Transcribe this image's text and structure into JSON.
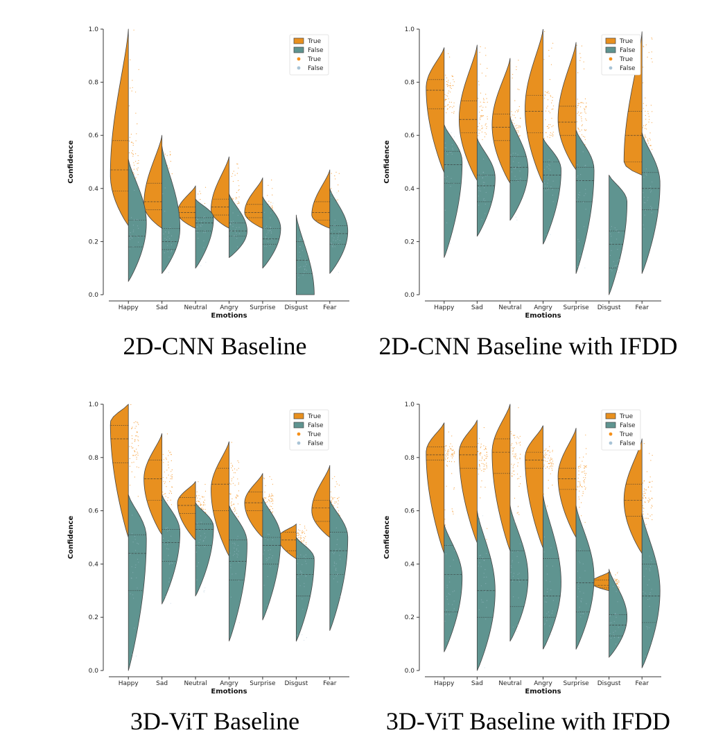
{
  "colors": {
    "true": "#e8901f",
    "false": "#5f9490",
    "true_point": "#f5901a",
    "false_point": "#a9c4d6",
    "edge": "#444444"
  },
  "legend_entries": [
    "True",
    "False",
    "True",
    "False"
  ],
  "chart_data": [
    {
      "type": "violin",
      "caption": "2D-CNN Baseline",
      "xlabel": "Emotions",
      "ylabel": "Confidence",
      "categories": [
        "Happy",
        "Sad",
        "Neutral",
        "Angry",
        "Surprise",
        "Disgust",
        "Fear"
      ],
      "ylim": [
        0,
        1
      ],
      "yticks": [
        "0.0",
        "0.2",
        "0.4",
        "0.6",
        "0.8",
        "1.0"
      ],
      "legend": "top-right",
      "series": [
        {
          "name": "True",
          "side": "left",
          "ranges": [
            [
              0.26,
              1.0
            ],
            [
              0.25,
              0.6
            ],
            [
              0.25,
              0.41
            ],
            [
              0.25,
              0.52
            ],
            [
              0.25,
              0.44
            ],
            null,
            [
              0.25,
              0.47
            ]
          ],
          "quartiles": [
            [
              0.39,
              0.47,
              0.58
            ],
            [
              0.32,
              0.35,
              0.42
            ],
            [
              0.29,
              0.31,
              0.33
            ],
            [
              0.3,
              0.33,
              0.36
            ],
            [
              0.29,
              0.31,
              0.34
            ],
            null,
            [
              0.28,
              0.31,
              0.35
            ]
          ],
          "peaks": [
            0.45,
            0.34,
            0.31,
            0.32,
            0.31,
            null,
            0.3
          ]
        },
        {
          "name": "False",
          "side": "right",
          "ranges": [
            [
              0.05,
              0.51
            ],
            [
              0.08,
              0.56
            ],
            [
              0.1,
              0.36
            ],
            [
              0.14,
              0.38
            ],
            [
              0.1,
              0.37
            ],
            [
              0.0,
              0.3
            ],
            [
              0.08,
              0.4
            ]
          ],
          "quartiles": [
            [
              0.18,
              0.22,
              0.28
            ],
            [
              0.17,
              0.2,
              0.25
            ],
            [
              0.24,
              0.27,
              0.29
            ],
            [
              0.22,
              0.24,
              0.27
            ],
            [
              0.19,
              0.21,
              0.25
            ],
            [
              0.08,
              0.13,
              0.2
            ],
            [
              0.19,
              0.23,
              0.26
            ]
          ],
          "peaks": [
            0.27,
            0.25,
            0.29,
            0.24,
            0.25,
            0.0,
            0.24
          ]
        }
      ]
    },
    {
      "type": "violin",
      "caption": "2D-CNN Baseline with IFDD",
      "xlabel": "Emotions",
      "ylabel": "Confidence",
      "categories": [
        "Happy",
        "Sad",
        "Neutral",
        "Angry",
        "Surprise",
        "Disgust",
        "Fear"
      ],
      "ylim": [
        0,
        1
      ],
      "yticks": [
        "0.0",
        "0.2",
        "0.4",
        "0.6",
        "0.8",
        "1.0"
      ],
      "legend": "top-right",
      "series": [
        {
          "name": "True",
          "side": "left",
          "ranges": [
            [
              0.46,
              0.93
            ],
            [
              0.43,
              0.94
            ],
            [
              0.42,
              0.89
            ],
            [
              0.42,
              1.0
            ],
            [
              0.47,
              0.95
            ],
            null,
            [
              0.45,
              0.99
            ]
          ],
          "quartiles": [
            [
              0.7,
              0.77,
              0.81
            ],
            [
              0.61,
              0.66,
              0.73
            ],
            [
              0.58,
              0.63,
              0.68
            ],
            [
              0.61,
              0.69,
              0.75
            ],
            [
              0.6,
              0.65,
              0.71
            ],
            null,
            [
              0.5,
              0.6,
              0.69
            ]
          ],
          "peaks": [
            0.78,
            0.66,
            0.64,
            0.7,
            0.66,
            null,
            0.5
          ]
        },
        {
          "name": "False",
          "side": "right",
          "ranges": [
            [
              0.14,
              0.64
            ],
            [
              0.22,
              0.59
            ],
            [
              0.28,
              0.67
            ],
            [
              0.19,
              0.59
            ],
            [
              0.08,
              0.62
            ],
            [
              0.0,
              0.45
            ],
            [
              0.08,
              0.61
            ]
          ],
          "quartiles": [
            [
              0.42,
              0.49,
              0.54
            ],
            [
              0.35,
              0.41,
              0.45
            ],
            [
              0.43,
              0.48,
              0.52
            ],
            [
              0.4,
              0.45,
              0.5
            ],
            [
              0.35,
              0.43,
              0.48
            ],
            [
              0.1,
              0.19,
              0.24
            ],
            [
              0.32,
              0.4,
              0.46
            ]
          ],
          "peaks": [
            0.5,
            0.44,
            0.47,
            0.47,
            0.47,
            0.35,
            0.42
          ]
        }
      ]
    },
    {
      "type": "violin",
      "caption": "3D-ViT Baseline",
      "xlabel": "Emotions",
      "ylabel": "Confidence",
      "categories": [
        "Happy",
        "Sad",
        "Neutral",
        "Angry",
        "Surprise",
        "Disgust",
        "Fear"
      ],
      "ylim": [
        0,
        1
      ],
      "yticks": [
        "0.0",
        "0.2",
        "0.4",
        "0.6",
        "0.8",
        "1.0"
      ],
      "legend": "top-right",
      "series": [
        {
          "name": "True",
          "side": "left",
          "ranges": [
            [
              0.5,
              1.0
            ],
            [
              0.51,
              0.89
            ],
            [
              0.49,
              0.71
            ],
            [
              0.43,
              0.86
            ],
            [
              0.5,
              0.74
            ],
            [
              0.42,
              0.55
            ],
            [
              0.5,
              0.77
            ]
          ],
          "quartiles": [
            [
              0.78,
              0.87,
              0.92
            ],
            [
              0.64,
              0.72,
              0.79
            ],
            [
              0.59,
              0.62,
              0.65
            ],
            [
              0.6,
              0.7,
              0.76
            ],
            [
              0.6,
              0.63,
              0.67
            ],
            [
              0.45,
              0.49,
              0.52
            ],
            [
              0.56,
              0.61,
              0.64
            ]
          ],
          "peaks": [
            0.93,
            0.72,
            0.63,
            0.68,
            0.63,
            0.5,
            0.6
          ]
        },
        {
          "name": "False",
          "side": "right",
          "ranges": [
            [
              0.0,
              0.66
            ],
            [
              0.25,
              0.66
            ],
            [
              0.28,
              0.63
            ],
            [
              0.11,
              0.62
            ],
            [
              0.19,
              0.65
            ],
            [
              0.11,
              0.5
            ],
            [
              0.15,
              0.64
            ]
          ],
          "quartiles": [
            [
              0.3,
              0.44,
              0.51
            ],
            [
              0.41,
              0.48,
              0.53
            ],
            [
              0.47,
              0.53,
              0.55
            ],
            [
              0.34,
              0.41,
              0.49
            ],
            [
              0.4,
              0.47,
              0.5
            ],
            [
              0.28,
              0.36,
              0.42
            ],
            [
              0.36,
              0.45,
              0.52
            ]
          ],
          "peaks": [
            0.5,
            0.52,
            0.54,
            0.48,
            0.5,
            0.42,
            0.5
          ]
        }
      ]
    },
    {
      "type": "violin",
      "caption": "3D-ViT Baseline with IFDD",
      "xlabel": "Emotions",
      "ylabel": "Confidence",
      "categories": [
        "Happy",
        "Sad",
        "Neutral",
        "Angry",
        "Surprise",
        "Disgust",
        "Fear"
      ],
      "ylim": [
        0,
        1
      ],
      "yticks": [
        "0.0",
        "0.2",
        "0.4",
        "0.6",
        "0.8",
        "1.0"
      ],
      "legend": "top-right",
      "series": [
        {
          "name": "True",
          "side": "left",
          "ranges": [
            [
              0.44,
              0.93
            ],
            [
              0.48,
              0.94
            ],
            [
              0.45,
              1.0
            ],
            [
              0.46,
              0.92
            ],
            [
              0.5,
              0.91
            ],
            [
              0.3,
              0.37
            ],
            [
              0.44,
              0.87
            ]
          ],
          "quartiles": [
            [
              0.79,
              0.81,
              0.84
            ],
            [
              0.76,
              0.81,
              0.84
            ],
            [
              0.74,
              0.82,
              0.87
            ],
            [
              0.76,
              0.79,
              0.82
            ],
            [
              0.68,
              0.72,
              0.76
            ],
            [
              0.31,
              0.32,
              0.34
            ],
            [
              0.58,
              0.64,
              0.7
            ]
          ],
          "peaks": [
            0.82,
            0.82,
            0.82,
            0.8,
            0.73,
            0.33,
            0.64
          ]
        },
        {
          "name": "False",
          "side": "right",
          "ranges": [
            [
              0.07,
              0.55
            ],
            [
              0.0,
              0.6
            ],
            [
              0.11,
              0.62
            ],
            [
              0.08,
              0.66
            ],
            [
              0.08,
              0.62
            ],
            [
              0.05,
              0.38
            ],
            [
              0.01,
              0.59
            ]
          ],
          "quartiles": [
            [
              0.22,
              0.36,
              0.47
            ],
            [
              0.2,
              0.3,
              0.42
            ],
            [
              0.24,
              0.34,
              0.45
            ],
            [
              0.2,
              0.28,
              0.42
            ],
            [
              0.22,
              0.33,
              0.45
            ],
            [
              0.13,
              0.17,
              0.21
            ],
            [
              0.18,
              0.28,
              0.4
            ]
          ],
          "peaks": [
            0.35,
            0.3,
            0.35,
            0.33,
            0.35,
            0.2,
            0.3
          ]
        }
      ]
    }
  ]
}
